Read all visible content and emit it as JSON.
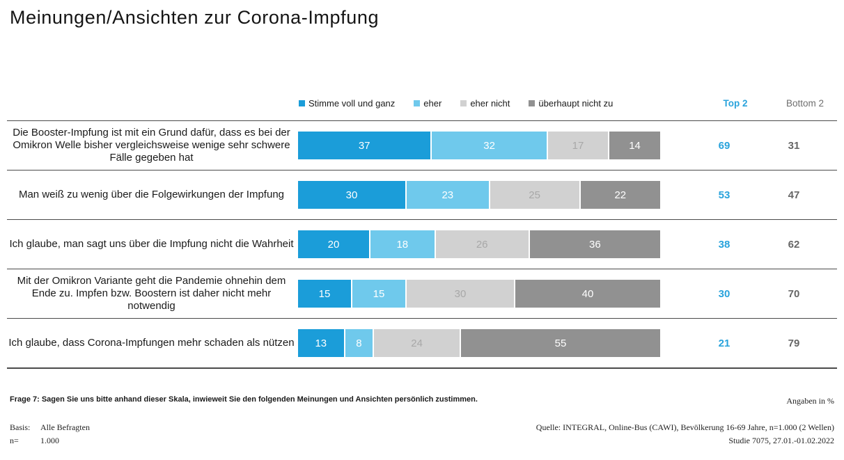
{
  "title": "Meinungen/Ansichten zur Corona-Impfung",
  "legend": [
    {
      "label": "Stimme voll und ganz",
      "color": "#1b9dd9",
      "label_color": "#ffffff"
    },
    {
      "label": "eher",
      "color": "#6fc9ec",
      "label_color": "#ffffff"
    },
    {
      "label": "eher nicht",
      "color": "#d1d1d1",
      "label_color": "#a8a8a8"
    },
    {
      "label": "überhaupt nicht zu",
      "color": "#919191",
      "label_color": "#ffffff"
    }
  ],
  "columns": {
    "top2": "Top 2",
    "bottom2": "Bottom 2"
  },
  "colors": {
    "top2_text": "#29a3dc",
    "bottom2_text": "#666666",
    "separator_line": "#4a4a4a",
    "background": "#ffffff"
  },
  "chart_data": {
    "type": "bar",
    "orientation": "horizontal-stacked",
    "unit": "%",
    "xlim": [
      0,
      100
    ],
    "categories": [
      "Die Booster-Impfung ist mit ein Grund dafür, dass es bei der Omikron Welle bisher vergleichsweise wenige sehr schwere Fälle gegeben hat",
      "Man weiß zu wenig über die Folgewirkungen der Impfung",
      "Ich glaube, man sagt uns über die Impfung nicht die Wahrheit",
      "Mit der Omikron Variante geht die Pandemie ohnehin dem Ende zu. Impfen bzw. Boostern ist daher nicht mehr notwendig",
      "Ich glaube, dass Corona-Impfungen mehr schaden als nützen"
    ],
    "series": [
      {
        "name": "Stimme voll und ganz",
        "values": [
          37,
          30,
          20,
          15,
          13
        ]
      },
      {
        "name": "eher",
        "values": [
          32,
          23,
          18,
          15,
          8
        ]
      },
      {
        "name": "eher nicht",
        "values": [
          17,
          25,
          26,
          30,
          24
        ]
      },
      {
        "name": "überhaupt nicht zu",
        "values": [
          14,
          22,
          36,
          40,
          55
        ]
      }
    ],
    "top2": [
      69,
      53,
      38,
      30,
      21
    ],
    "bottom2": [
      31,
      47,
      62,
      70,
      79
    ]
  },
  "footer": {
    "question": "Frage 7: Sagen Sie uns bitte anhand dieser Skala, inwieweit Sie den folgenden Meinungen und Ansichten persönlich zustimmen.",
    "angaben": "Angaben in %",
    "basis_label": "Basis:",
    "basis_value": "Alle Befragten",
    "n_label": "n=",
    "n_value": "1.000",
    "source_line1": "Quelle: INTEGRAL, Online-Bus (CAWI),  Bevölkerung 16-69 Jahre, n=1.000 (2 Wellen)",
    "source_line2": "Studie 7075, 27.01.-01.02.2022"
  }
}
